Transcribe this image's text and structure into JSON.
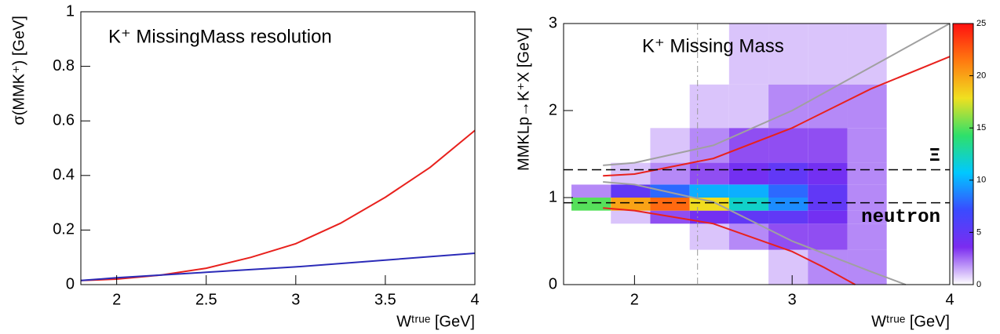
{
  "chart_data": [
    {
      "type": "line",
      "title": "K⁺ MissingMass resolution",
      "x_label": "Wᵗʳᵘᵉ [GeV]",
      "y_label": "σ(MMK⁺) [GeV]",
      "xlim": [
        1.8,
        4
      ],
      "ylim": [
        0,
        1
      ],
      "xticks": [
        2,
        2.5,
        3,
        3.5,
        4
      ],
      "yticks": [
        0,
        0.2,
        0.4,
        0.6,
        0.8,
        1
      ],
      "series": [
        {
          "color": "#e8211d",
          "x": [
            1.8,
            2,
            2.25,
            2.5,
            2.75,
            3,
            3.25,
            3.5,
            3.75,
            4
          ],
          "values": [
            0.015,
            0.02,
            0.035,
            0.06,
            0.1,
            0.15,
            0.225,
            0.32,
            0.43,
            0.565
          ]
        },
        {
          "color": "#2b2bb8",
          "x": [
            1.8,
            2,
            2.5,
            3,
            3.5,
            4
          ],
          "values": [
            0.015,
            0.025,
            0.045,
            0.065,
            0.09,
            0.115
          ]
        }
      ]
    },
    {
      "type": "heatmap",
      "title": "K⁺ Missing Mass",
      "x_label": "Wᵗʳᵘᵉ [GeV]",
      "y_label": "MMKLp→K⁺X [GeV]",
      "xlim": [
        1.55,
        4
      ],
      "ylim": [
        0,
        3
      ],
      "xticks": [
        2,
        3,
        4
      ],
      "yticks": [
        0,
        1,
        2,
        3
      ],
      "zlim": [
        0,
        25
      ],
      "zticks": [
        0,
        5,
        10,
        15,
        20,
        25
      ],
      "colorscale": [
        "#ffffff",
        "#7b2cf0",
        "#3a4bff",
        "#00c8ff",
        "#2fe06a",
        "#f0e020",
        "#ff7a10",
        "#ff1010"
      ],
      "x_bins": [
        1.6,
        1.85,
        2.1,
        2.35,
        2.6,
        2.85,
        3.1,
        3.35,
        3.6
      ],
      "y_bins": [
        0,
        0.4,
        0.7,
        0.85,
        1.0,
        1.15,
        1.4,
        1.8,
        2.3,
        3.0
      ],
      "z": [
        [
          0,
          0,
          0,
          0,
          0,
          1,
          2,
          2
        ],
        [
          0,
          0,
          0,
          1,
          2,
          3,
          3,
          2
        ],
        [
          0,
          1,
          3,
          4,
          5,
          5,
          4,
          2
        ],
        [
          15,
          20,
          22,
          18,
          12,
          9,
          5,
          2
        ],
        [
          2,
          5,
          8,
          10,
          10,
          8,
          5,
          2
        ],
        [
          0,
          1,
          2,
          3,
          4,
          5,
          4,
          2
        ],
        [
          0,
          0,
          1,
          2,
          3,
          3,
          3,
          2
        ],
        [
          0,
          0,
          0,
          1,
          1,
          2,
          2,
          2
        ],
        [
          0,
          0,
          0,
          0,
          1,
          1,
          1,
          1
        ]
      ],
      "series": [
        {
          "color": "#e8211d",
          "x": [
            1.8,
            2,
            2.5,
            3,
            3.5,
            4
          ],
          "values": [
            1.25,
            1.27,
            1.45,
            1.8,
            2.25,
            2.62
          ]
        },
        {
          "color": "#e8211d",
          "x": [
            1.8,
            2,
            2.5,
            3,
            3.2,
            3.4
          ],
          "values": [
            0.88,
            0.85,
            0.7,
            0.38,
            0.2,
            0
          ]
        },
        {
          "color": "#a0a0a0",
          "x": [
            1.8,
            2,
            2.5,
            3,
            3.5,
            4
          ],
          "values": [
            1.37,
            1.4,
            1.6,
            2.0,
            2.5,
            3.0
          ]
        },
        {
          "color": "#a0a0a0",
          "x": [
            1.8,
            2,
            2.5,
            3,
            3.5,
            3.72
          ],
          "values": [
            1.18,
            1.15,
            0.95,
            0.5,
            0.15,
            0
          ]
        }
      ],
      "hlines": [
        {
          "value": 1.32,
          "label": "Ξ"
        },
        {
          "value": 0.94,
          "label": "neutron"
        }
      ],
      "vlines": [
        2.4
      ]
    }
  ]
}
